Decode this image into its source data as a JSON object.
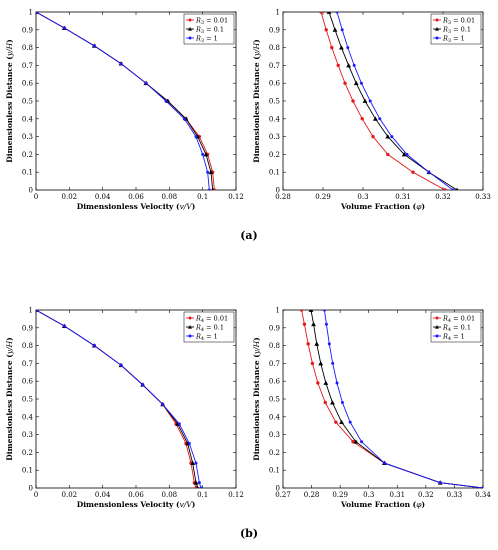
{
  "captions": [
    "(a)",
    "(b)"
  ],
  "chart_data": [
    {
      "id": "a-left",
      "type": "line",
      "xlabel": "Dimensionless Velocity (v/V)",
      "ylabel": "Dimensionless Distance (y/H)",
      "xlim": [
        0,
        0.12
      ],
      "ylim": [
        0,
        1
      ],
      "xticks": [
        "0",
        "0.02",
        "0.04",
        "0.06",
        "0.08",
        "0.1",
        "0.12"
      ],
      "yticks": [
        "0",
        "0.1",
        "0.2",
        "0.3",
        "0.4",
        "0.5",
        "0.6",
        "0.7",
        "0.8",
        "0.9",
        "1"
      ],
      "grid": false,
      "legend_position": "top-right",
      "series": [
        {
          "name": "R3 = 0.01",
          "color": "#e41a1c",
          "x": [
            0,
            0.017,
            0.035,
            0.051,
            0.066,
            0.079,
            0.09,
            0.098,
            0.103,
            0.106,
            0.107
          ],
          "y": [
            1,
            0.91,
            0.81,
            0.71,
            0.6,
            0.5,
            0.4,
            0.3,
            0.2,
            0.1,
            0
          ]
        },
        {
          "name": "R3 = 0.1",
          "color": "#000000",
          "x": [
            0,
            0.017,
            0.035,
            0.051,
            0.066,
            0.079,
            0.09,
            0.097,
            0.102,
            0.105,
            0.106
          ],
          "y": [
            1,
            0.91,
            0.81,
            0.71,
            0.6,
            0.5,
            0.4,
            0.3,
            0.2,
            0.1,
            0
          ]
        },
        {
          "name": "R3 = 1",
          "color": "#1a1aff",
          "x": [
            0,
            0.017,
            0.035,
            0.051,
            0.066,
            0.078,
            0.089,
            0.096,
            0.1,
            0.103,
            0.104
          ],
          "y": [
            1,
            0.91,
            0.81,
            0.71,
            0.6,
            0.5,
            0.4,
            0.3,
            0.2,
            0.1,
            0
          ]
        }
      ]
    },
    {
      "id": "a-right",
      "type": "line",
      "xlabel": "Volume Fraction (φ)",
      "ylabel": "Dimensionless Distance (y/H)",
      "xlim": [
        0.28,
        0.33
      ],
      "ylim": [
        0,
        1
      ],
      "xticks": [
        "0.28",
        "0.29",
        "0.3",
        "0.31",
        "0.32",
        "0.33"
      ],
      "yticks": [
        "0",
        "0.1",
        "0.2",
        "0.3",
        "0.4",
        "0.5",
        "0.6",
        "0.7",
        "0.8",
        "0.9",
        "1"
      ],
      "grid": false,
      "legend_position": "top-right",
      "series": [
        {
          "name": "R3 = 0.01",
          "color": "#e41a1c",
          "x": [
            0.2895,
            0.2908,
            0.2922,
            0.2938,
            0.2955,
            0.2975,
            0.2998,
            0.3025,
            0.3062,
            0.3125,
            0.3205
          ],
          "y": [
            1,
            0.9,
            0.8,
            0.7,
            0.6,
            0.5,
            0.4,
            0.3,
            0.2,
            0.1,
            0
          ]
        },
        {
          "name": "R3 = 0.1",
          "color": "#000000",
          "x": [
            0.2915,
            0.293,
            0.2946,
            0.2964,
            0.2983,
            0.3005,
            0.3031,
            0.3062,
            0.3103,
            0.3165,
            0.3235
          ],
          "y": [
            1,
            0.9,
            0.8,
            0.7,
            0.6,
            0.5,
            0.4,
            0.3,
            0.2,
            0.1,
            0
          ]
        },
        {
          "name": "R3 = 1",
          "color": "#1a1aff",
          "x": [
            0.2935,
            0.2948,
            0.2962,
            0.2978,
            0.2996,
            0.3018,
            0.3042,
            0.3072,
            0.311,
            0.3165,
            0.3225
          ],
          "y": [
            1,
            0.9,
            0.8,
            0.7,
            0.6,
            0.5,
            0.4,
            0.3,
            0.2,
            0.1,
            0
          ]
        }
      ]
    },
    {
      "id": "b-left",
      "type": "line",
      "xlabel": "Dimensionless Velocity (v/V)",
      "ylabel": "Dimensionless Distance (y/H)",
      "xlim": [
        0,
        0.12
      ],
      "ylim": [
        0,
        1
      ],
      "xticks": [
        "0",
        "0.02",
        "0.04",
        "0.06",
        "0.08",
        "0.1",
        "0.12"
      ],
      "yticks": [
        "0",
        "0.1",
        "0.2",
        "0.3",
        "0.4",
        "0.5",
        "0.6",
        "0.7",
        "0.8",
        "0.9",
        "1"
      ],
      "grid": false,
      "legend_position": "top-right",
      "series": [
        {
          "name": "R4 = 0.01",
          "color": "#e41a1c",
          "x": [
            0,
            0.017,
            0.035,
            0.051,
            0.064,
            0.076,
            0.084,
            0.09,
            0.093,
            0.095,
            0.096
          ],
          "y": [
            1,
            0.91,
            0.8,
            0.69,
            0.58,
            0.47,
            0.36,
            0.25,
            0.14,
            0.03,
            0
          ]
        },
        {
          "name": "R4 = 0.1",
          "color": "#000000",
          "x": [
            0,
            0.017,
            0.035,
            0.051,
            0.064,
            0.076,
            0.085,
            0.091,
            0.094,
            0.096,
            0.097
          ],
          "y": [
            1,
            0.91,
            0.8,
            0.69,
            0.58,
            0.47,
            0.36,
            0.25,
            0.14,
            0.03,
            0
          ]
        },
        {
          "name": "R4 = 1",
          "color": "#1a1aff",
          "x": [
            0,
            0.017,
            0.035,
            0.051,
            0.064,
            0.076,
            0.086,
            0.092,
            0.096,
            0.098,
            0.099
          ],
          "y": [
            1,
            0.91,
            0.8,
            0.69,
            0.58,
            0.47,
            0.36,
            0.25,
            0.14,
            0.03,
            0
          ]
        }
      ]
    },
    {
      "id": "b-right",
      "type": "line",
      "xlabel": "Volume Fraction (φ)",
      "ylabel": "Dimensionless Distance (y/H)",
      "xlim": [
        0.27,
        0.34
      ],
      "ylim": [
        0,
        1
      ],
      "xticks": [
        "0.27",
        "0.28",
        "0.29",
        "0.3",
        "0.31",
        "0.32",
        "0.33",
        "0.34"
      ],
      "yticks": [
        "0",
        "0.1",
        "0.2",
        "0.3",
        "0.4",
        "0.5",
        "0.6",
        "0.7",
        "0.8",
        "0.9",
        "1"
      ],
      "grid": false,
      "legend_position": "top-right",
      "series": [
        {
          "name": "R4 = 0.01",
          "color": "#e41a1c",
          "x": [
            0.2765,
            0.2775,
            0.2788,
            0.2803,
            0.2822,
            0.2848,
            0.2885,
            0.2945,
            0.3055,
            0.325,
            0.34
          ],
          "y": [
            1,
            0.92,
            0.81,
            0.7,
            0.59,
            0.48,
            0.37,
            0.26,
            0.14,
            0.03,
            0
          ]
        },
        {
          "name": "R4 = 0.1",
          "color": "#000000",
          "x": [
            0.2798,
            0.2807,
            0.2818,
            0.2832,
            0.285,
            0.2873,
            0.2905,
            0.2955,
            0.3055,
            0.325,
            0.34
          ],
          "y": [
            1,
            0.92,
            0.81,
            0.7,
            0.59,
            0.48,
            0.37,
            0.26,
            0.14,
            0.03,
            0
          ]
        },
        {
          "name": "R4 = 1",
          "color": "#1a1aff",
          "x": [
            0.2845,
            0.2852,
            0.2862,
            0.2874,
            0.2889,
            0.2908,
            0.2935,
            0.2975,
            0.3055,
            0.325,
            0.34
          ],
          "y": [
            1,
            0.92,
            0.81,
            0.7,
            0.59,
            0.48,
            0.37,
            0.26,
            0.14,
            0.03,
            0
          ]
        }
      ]
    }
  ]
}
